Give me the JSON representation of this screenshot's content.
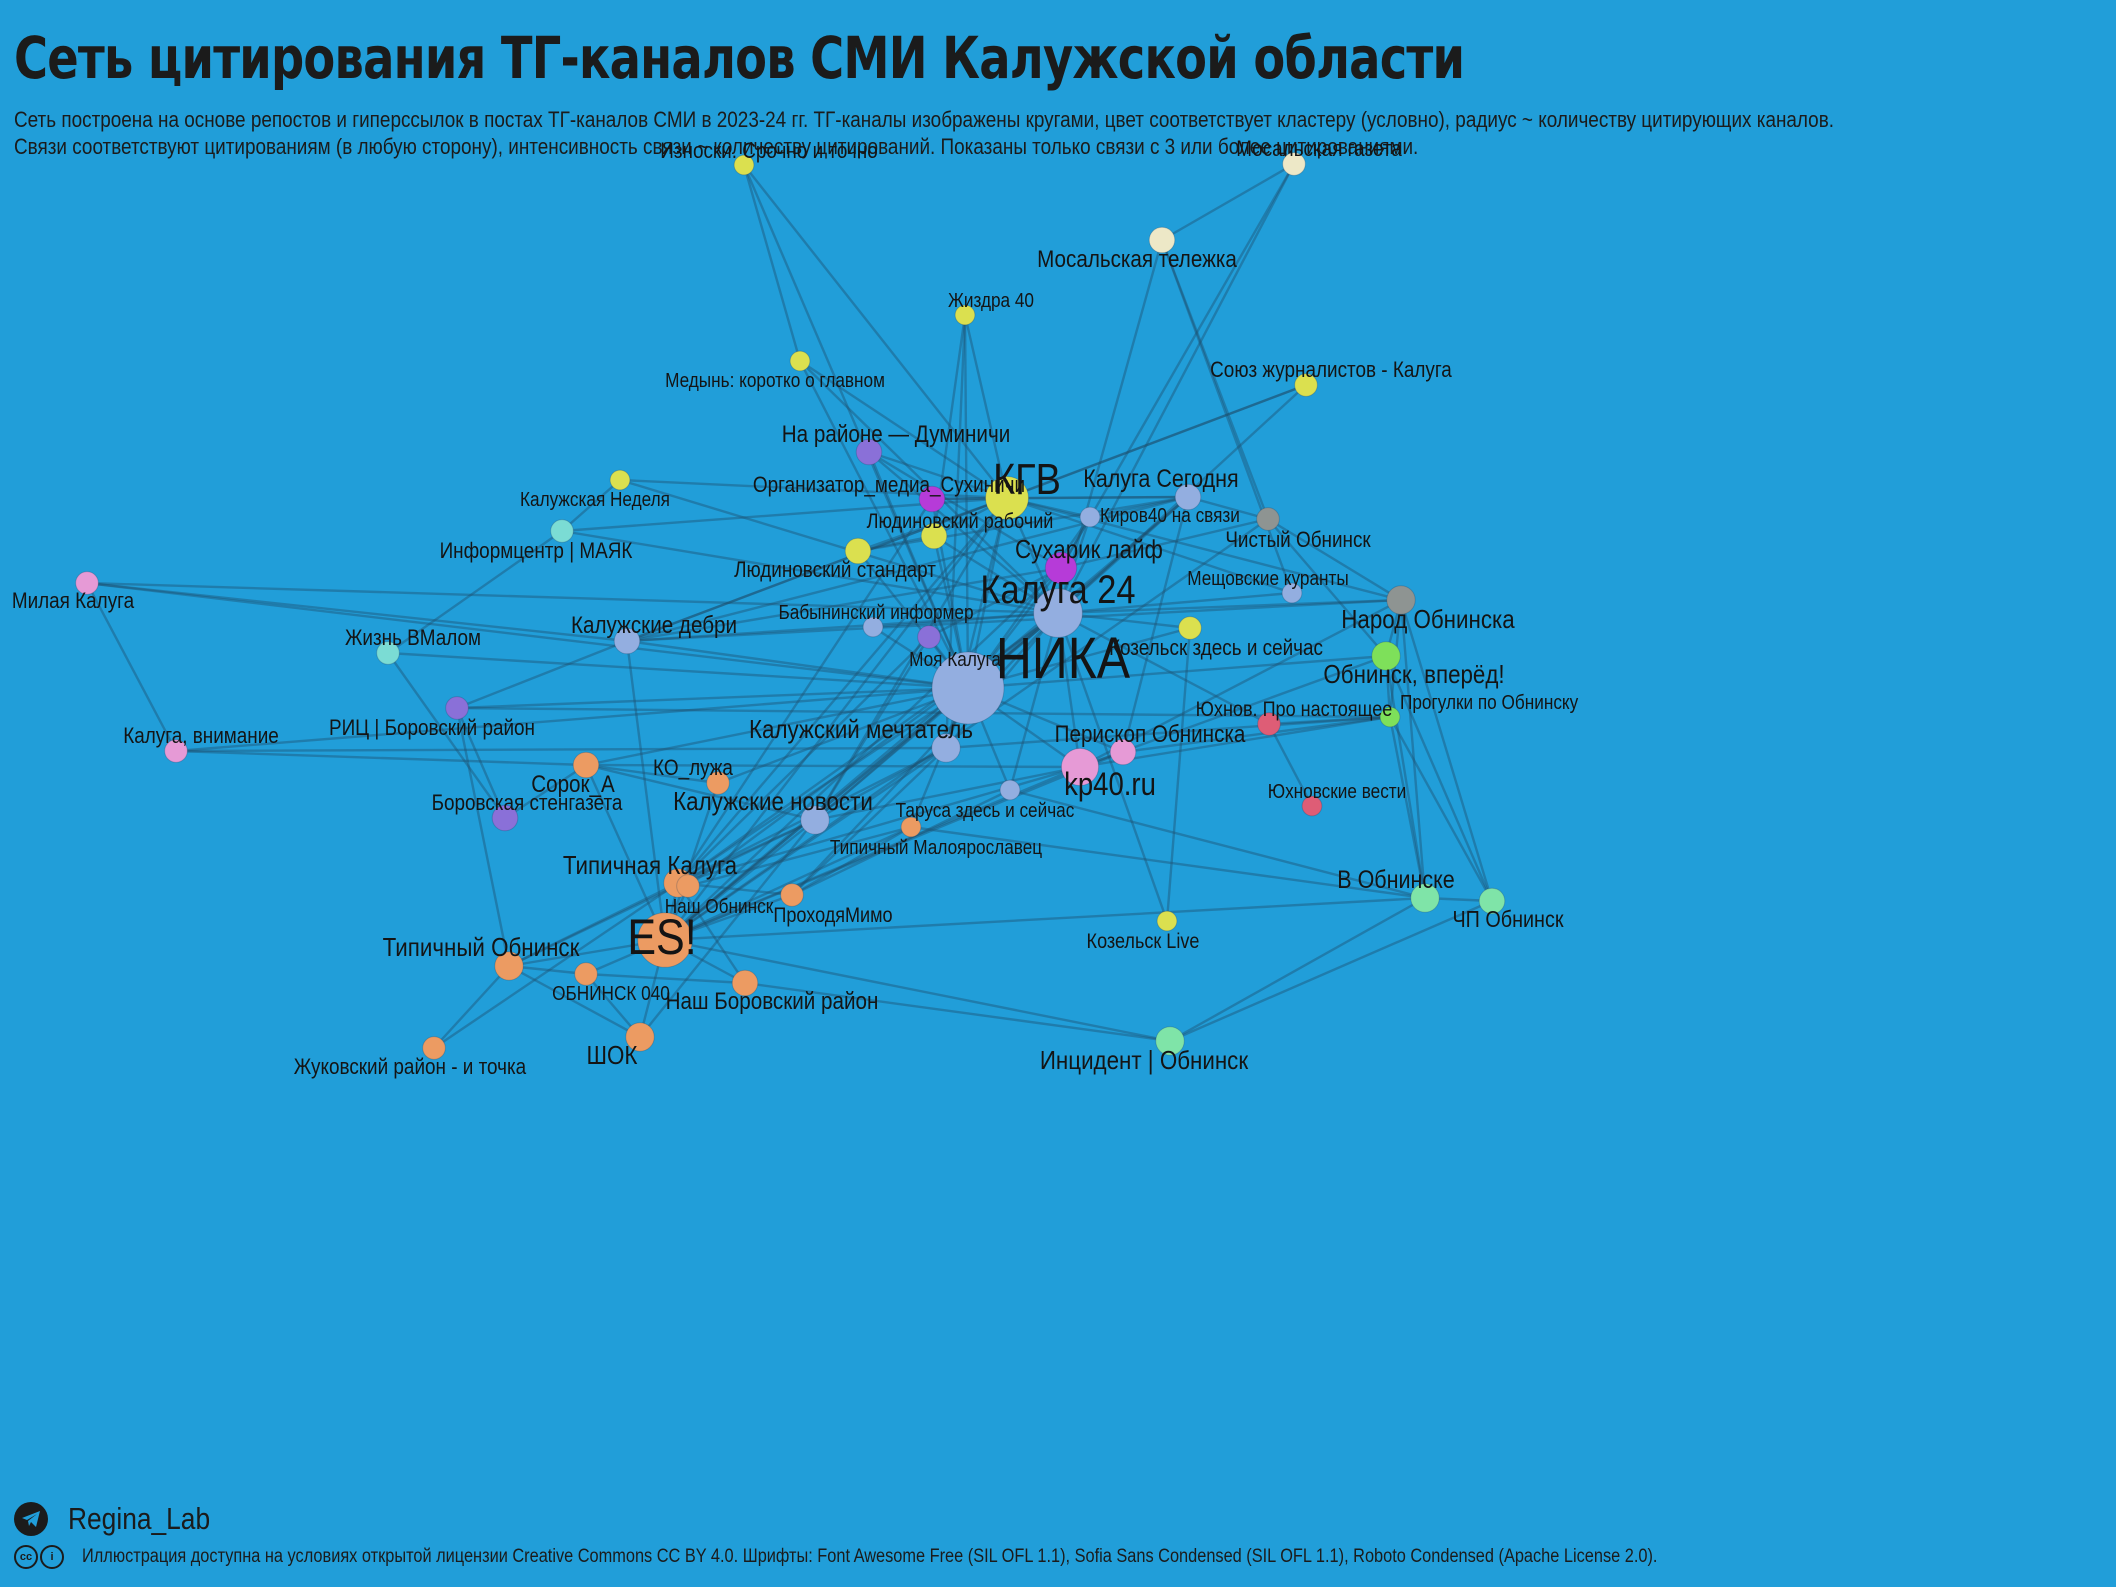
{
  "header": {
    "title": "Сеть цитирования ТГ-каналов СМИ Калужской области",
    "subtitle_line1": "Сеть построена на основе репостов и гиперссылок в постах ТГ-каналов СМИ в 2023-24 гг. ТГ-каналы изображены кругами, цвет соответствует кластеру (условно), радиус ~ количеству цитирующих каналов.",
    "subtitle_line2": "Связи соответствуют цитированиям (в любую сторону), интенсивность связи ~ количеству цитирований. Показаны только связи с 3 или более цитированиями."
  },
  "footer": {
    "author": "Regina_Lab",
    "license": "Иллюстрация доступна на условиях открытой лицензии Creative Commons CC BY 4.0. Шрифты: Font Awesome Free (SIL OFL 1.1), Sofia Sans Condensed (SIL OFL 1.1), Roboto Condensed (Apache License 2.0).",
    "telegram_icon": "telegram-icon",
    "cc_icon": "creative-commons-icon"
  },
  "colors": {
    "background": "#219ed9",
    "edge": "#1d4f6e",
    "label": "#141414",
    "clusters": {
      "kaluga": "#93aee0",
      "obninsk_typical": "#ec9b62",
      "yellow": "#dbe04f",
      "purple": "#8a70d8",
      "magenta": "#b63bd8",
      "green": "#7ee05a",
      "mint": "#7fe4a8",
      "gray": "#8e9492",
      "red": "#de5d76",
      "pink": "#e69ad6",
      "beige": "#ede8c7",
      "teal": "#7bdcd4"
    }
  },
  "network": {
    "nodes": [
      {
        "id": "nika",
        "label": "НИКА",
        "cluster": "kaluga",
        "weight": 10
      },
      {
        "id": "kaluga24",
        "label": "Калуга 24",
        "cluster": "kaluga",
        "weight": 6
      },
      {
        "id": "es",
        "label": "ES!",
        "cluster": "obninsk_typical",
        "weight": 7
      },
      {
        "id": "kgv",
        "label": "КГВ",
        "cluster": "yellow",
        "weight": 5
      },
      {
        "id": "kp40",
        "label": "kp40.ru",
        "cluster": "pink",
        "weight": 4
      },
      {
        "id": "iznoski",
        "label": "Износки. Срочно и точно",
        "cluster": "yellow",
        "weight": 1
      },
      {
        "id": "mos_gaz",
        "label": "Мосальская газета",
        "cluster": "beige",
        "weight": 1.5
      },
      {
        "id": "mos_tel",
        "label": "Мосальская тележка",
        "cluster": "beige",
        "weight": 2
      },
      {
        "id": "zhizdra",
        "label": "Жиздра 40",
        "cluster": "yellow",
        "weight": 1
      },
      {
        "id": "medyn",
        "label": "Медынь: коротко о главном",
        "cluster": "yellow",
        "weight": 1
      },
      {
        "id": "souz",
        "label": "Союз журналистов - Калуга",
        "cluster": "yellow",
        "weight": 1.5
      },
      {
        "id": "dumin",
        "label": "На районе — Думиничи",
        "cluster": "purple",
        "weight": 2
      },
      {
        "id": "sukhin",
        "label": "Организатор_медиа_Сухиничи",
        "cluster": "magenta",
        "weight": 2
      },
      {
        "id": "kal_ned",
        "label": "Калужская Неделя",
        "cluster": "yellow",
        "weight": 1
      },
      {
        "id": "kal_seg",
        "label": "Калуга Сегодня",
        "cluster": "kaluga",
        "weight": 2
      },
      {
        "id": "kirov",
        "label": "Киров40 на связи",
        "cluster": "kaluga",
        "weight": 1
      },
      {
        "id": "chist_obn",
        "label": "Чистый Обнинск",
        "cluster": "gray",
        "weight": 1.5
      },
      {
        "id": "lud_rab",
        "label": "Людиновский рабочий",
        "cluster": "yellow",
        "weight": 2
      },
      {
        "id": "infocenter",
        "label": "Информцентр | МАЯК",
        "cluster": "teal",
        "weight": 1.5
      },
      {
        "id": "sukharik",
        "label": "Сухарик лайф",
        "cluster": "magenta",
        "weight": 3
      },
      {
        "id": "lud_std",
        "label": "Людиновский стандарт",
        "cluster": "yellow",
        "weight": 2
      },
      {
        "id": "mil_kal",
        "label": "Милая Калуга",
        "cluster": "pink",
        "weight": 1.5
      },
      {
        "id": "meshch",
        "label": "Мещовские куранты",
        "cluster": "kaluga",
        "weight": 1
      },
      {
        "id": "babyn",
        "label": "Бабынинский информер",
        "cluster": "kaluga",
        "weight": 1
      },
      {
        "id": "narod_obn",
        "label": "Народ Обнинска",
        "cluster": "gray",
        "weight": 2.5
      },
      {
        "id": "kal_debri",
        "label": "Калужские дебри",
        "cluster": "kaluga",
        "weight": 2
      },
      {
        "id": "zhizn",
        "label": "Жизнь ВМалом",
        "cluster": "teal",
        "weight": 1.5
      },
      {
        "id": "moya_kal",
        "label": "Моя Калуга",
        "cluster": "purple",
        "weight": 1.5
      },
      {
        "id": "kozelsk_zs",
        "label": "Козельск здесь и сейчас",
        "cluster": "yellow",
        "weight": 1.5
      },
      {
        "id": "obn_vpered",
        "label": "Обнинск, вперёд!",
        "cluster": "green",
        "weight": 2.5
      },
      {
        "id": "progulki",
        "label": "Прогулки по Обнинску",
        "cluster": "green",
        "weight": 1
      },
      {
        "id": "yukh_pro",
        "label": "Юхнов. Про настоящее",
        "cluster": "red",
        "weight": 1.5
      },
      {
        "id": "ric",
        "label": "РИЦ | Боровский район",
        "cluster": "purple",
        "weight": 1.5
      },
      {
        "id": "kal_vnim",
        "label": "Калуга, внимание",
        "cluster": "pink",
        "weight": 1.5
      },
      {
        "id": "kal_mecht",
        "label": "Калужский мечтатель",
        "cluster": "kaluga",
        "weight": 2.5
      },
      {
        "id": "periskop",
        "label": "Перископ Обнинска",
        "cluster": "pink",
        "weight": 2
      },
      {
        "id": "sorok",
        "label": "Сорок_А",
        "cluster": "obninsk_typical",
        "weight": 2
      },
      {
        "id": "ko_luzha",
        "label": "КО_лужа",
        "cluster": "obninsk_typical",
        "weight": 1.5
      },
      {
        "id": "yukh_vesti",
        "label": "Юхновские вести",
        "cluster": "red",
        "weight": 1
      },
      {
        "id": "bor_sten",
        "label": "Боровская стенгазета",
        "cluster": "purple",
        "weight": 2
      },
      {
        "id": "kal_nov",
        "label": "Калужские новости",
        "cluster": "kaluga",
        "weight": 2.5
      },
      {
        "id": "tarusa",
        "label": "Таруса здесь и сейчас",
        "cluster": "kaluga",
        "weight": 1
      },
      {
        "id": "tip_malo",
        "label": "Типичный Малоярославец",
        "cluster": "obninsk_typical",
        "weight": 1
      },
      {
        "id": "tip_kal",
        "label": "Типичная Калуга",
        "cluster": "obninsk_typical",
        "weight": 2.5
      },
      {
        "id": "nash_obn",
        "label": "Наш Обнинск",
        "cluster": "obninsk_typical",
        "weight": 1.5
      },
      {
        "id": "prokh",
        "label": "ПроходяМимо",
        "cluster": "obninsk_typical",
        "weight": 1.5
      },
      {
        "id": "v_obn",
        "label": "В Обнинске",
        "cluster": "mint",
        "weight": 2.5
      },
      {
        "id": "chp_obn",
        "label": "ЧП Обнинск",
        "cluster": "mint",
        "weight": 2
      },
      {
        "id": "kozelsk_live",
        "label": "Козельск Live",
        "cluster": "yellow",
        "weight": 1
      },
      {
        "id": "tip_obn",
        "label": "Типичный Обнинск",
        "cluster": "obninsk_typical",
        "weight": 2.5
      },
      {
        "id": "obn040",
        "label": "ОБНИНСК 040",
        "cluster": "obninsk_typical",
        "weight": 1.5
      },
      {
        "id": "nash_bor",
        "label": "Наш Боровский район",
        "cluster": "obninsk_typical",
        "weight": 2
      },
      {
        "id": "zhuk",
        "label": "Жуковский район - и точка",
        "cluster": "obninsk_typical",
        "weight": 1.5
      },
      {
        "id": "shok",
        "label": "ШОК",
        "cluster": "obninsk_typical",
        "weight": 2.5
      },
      {
        "id": "incident",
        "label": "Инцидент | Обнинск",
        "cluster": "mint",
        "weight": 2.5
      }
    ],
    "edges": [
      [
        "nika",
        "kaluga24"
      ],
      [
        "nika",
        "es"
      ],
      [
        "nika",
        "kgv"
      ],
      [
        "nika",
        "kp40"
      ],
      [
        "nika",
        "kal_mecht"
      ],
      [
        "nika",
        "kal_nov"
      ],
      [
        "nika",
        "sukharik"
      ],
      [
        "nika",
        "kal_debri"
      ],
      [
        "nika",
        "moya_kal"
      ],
      [
        "nika",
        "babyn"
      ],
      [
        "nika",
        "lud_std"
      ],
      [
        "nika",
        "lud_rab"
      ],
      [
        "nika",
        "sukhin"
      ],
      [
        "nika",
        "dumin"
      ],
      [
        "nika",
        "zhizdra"
      ],
      [
        "nika",
        "iznoski"
      ],
      [
        "nika",
        "tip_kal"
      ],
      [
        "nika",
        "tarusa"
      ],
      [
        "nika",
        "periskop"
      ],
      [
        "nika",
        "ric"
      ],
      [
        "nika",
        "zhizn"
      ],
      [
        "nika",
        "mil_kal"
      ],
      [
        "nika",
        "kal_seg"
      ],
      [
        "nika",
        "kirov"
      ],
      [
        "nika",
        "tip_malo"
      ],
      [
        "nika",
        "obn_vpered"
      ],
      [
        "nika",
        "kozelsk_zs"
      ],
      [
        "nika",
        "medyn"
      ],
      [
        "nika",
        "sorok"
      ],
      [
        "nika",
        "ko_luzha"
      ],
      [
        "kaluga24",
        "kgv"
      ],
      [
        "kaluga24",
        "es"
      ],
      [
        "kaluga24",
        "sukharik"
      ],
      [
        "kaluga24",
        "kal_seg"
      ],
      [
        "kaluga24",
        "kal_debri"
      ],
      [
        "kaluga24",
        "tip_kal"
      ],
      [
        "kaluga24",
        "kal_mecht"
      ],
      [
        "kaluga24",
        "kal_nov"
      ],
      [
        "kaluga24",
        "kirov"
      ],
      [
        "kaluga24",
        "mos_gaz"
      ],
      [
        "kaluga24",
        "lud_rab"
      ],
      [
        "kaluga24",
        "meshch"
      ],
      [
        "kaluga24",
        "narod_obn"
      ],
      [
        "kaluga24",
        "kozelsk_zs"
      ],
      [
        "kaluga24",
        "tarusa"
      ],
      [
        "kaluga24",
        "souz"
      ],
      [
        "kaluga24",
        "kp40"
      ],
      [
        "kaluga24",
        "infocenter"
      ],
      [
        "kaluga24",
        "nash_obn"
      ],
      [
        "kaluga24",
        "prokh"
      ],
      [
        "kaluga24",
        "dumin"
      ],
      [
        "es",
        "tip_kal"
      ],
      [
        "es",
        "tip_obn"
      ],
      [
        "es",
        "obn040"
      ],
      [
        "es",
        "nash_bor"
      ],
      [
        "es",
        "shok"
      ],
      [
        "es",
        "nash_obn"
      ],
      [
        "es",
        "kal_nov"
      ],
      [
        "es",
        "prokh"
      ],
      [
        "es",
        "ko_luzha"
      ],
      [
        "es",
        "sorok"
      ],
      [
        "es",
        "kal_mecht"
      ],
      [
        "es",
        "kgv"
      ],
      [
        "es",
        "sukharik"
      ],
      [
        "es",
        "kp40"
      ],
      [
        "es",
        "periskop"
      ],
      [
        "es",
        "v_obn"
      ],
      [
        "es",
        "chist_obn"
      ],
      [
        "es",
        "kal_debri"
      ],
      [
        "es",
        "tip_malo"
      ],
      [
        "es",
        "kal_seg"
      ],
      [
        "kgv",
        "zhizdra"
      ],
      [
        "kgv",
        "iznoski"
      ],
      [
        "kgv",
        "lud_rab"
      ],
      [
        "kgv",
        "sukhin"
      ],
      [
        "kgv",
        "kal_seg"
      ],
      [
        "kgv",
        "kirov"
      ],
      [
        "kgv",
        "dumin"
      ],
      [
        "kgv",
        "tip_kal"
      ],
      [
        "kgv",
        "kal_nov"
      ],
      [
        "kgv",
        "kal_debri"
      ],
      [
        "kgv",
        "lud_std"
      ],
      [
        "kgv",
        "kal_ned"
      ],
      [
        "kgv",
        "narod_obn"
      ],
      [
        "kgv",
        "kal_mecht"
      ],
      [
        "kp40",
        "periskop"
      ],
      [
        "kp40",
        "obn_vpered"
      ],
      [
        "kp40",
        "progulki"
      ],
      [
        "kp40",
        "tip_kal"
      ],
      [
        "kp40",
        "kal_nov"
      ],
      [
        "kp40",
        "sorok"
      ],
      [
        "mos_gaz",
        "mos_tel"
      ],
      [
        "mos_gaz",
        "sukharik"
      ],
      [
        "mos_tel",
        "meshch"
      ],
      [
        "mos_tel",
        "kaluga24"
      ],
      [
        "zhizdra",
        "lud_rab"
      ],
      [
        "zhizdra",
        "kal_mecht"
      ],
      [
        "medyn",
        "kgv"
      ],
      [
        "medyn",
        "kaluga24"
      ],
      [
        "medyn",
        "iznoski"
      ],
      [
        "souz",
        "kal_debri"
      ],
      [
        "souz",
        "kgv"
      ],
      [
        "dumin",
        "sukharik"
      ],
      [
        "sukhin",
        "kal_seg"
      ],
      [
        "sukhin",
        "tip_kal"
      ],
      [
        "kal_ned",
        "kaluga24"
      ],
      [
        "infocenter",
        "kgv"
      ],
      [
        "infocenter",
        "zhizn"
      ],
      [
        "infocenter",
        "kal_ned"
      ],
      [
        "mil_kal",
        "kal_vnim"
      ],
      [
        "mil_kal",
        "kaluga24"
      ],
      [
        "kal_vnim",
        "nika"
      ],
      [
        "kal_vnim",
        "kal_mecht"
      ],
      [
        "narod_obn",
        "obn_vpered"
      ],
      [
        "narod_obn",
        "v_obn"
      ],
      [
        "narod_obn",
        "progulki"
      ],
      [
        "narod_obn",
        "chp_obn"
      ],
      [
        "narod_obn",
        "chist_obn"
      ],
      [
        "narod_obn",
        "kp40"
      ],
      [
        "narod_obn",
        "kal_debri"
      ],
      [
        "obn_vpered",
        "progulki"
      ],
      [
        "obn_vpered",
        "v_obn"
      ],
      [
        "obn_vpered",
        "chp_obn"
      ],
      [
        "obn_vpered",
        "chist_obn"
      ],
      [
        "progulki",
        "v_obn"
      ],
      [
        "progulki",
        "chp_obn"
      ],
      [
        "progulki",
        "periskop"
      ],
      [
        "progulki",
        "ric"
      ],
      [
        "progulki",
        "kal_mecht"
      ],
      [
        "chist_obn",
        "kal_seg"
      ],
      [
        "chist_obn",
        "mos_tel"
      ],
      [
        "chist_obn",
        "sukharik"
      ],
      [
        "yukh_pro",
        "yukh_vesti"
      ],
      [
        "yukh_pro",
        "kaluga24"
      ],
      [
        "yukh_pro",
        "progulki"
      ],
      [
        "v_obn",
        "chp_obn"
      ],
      [
        "v_obn",
        "incident"
      ],
      [
        "v_obn",
        "tarusa"
      ],
      [
        "v_obn",
        "tip_malo"
      ],
      [
        "chp_obn",
        "incident"
      ],
      [
        "incident",
        "es"
      ],
      [
        "incident",
        "nash_bor"
      ],
      [
        "kozelsk_live",
        "kozelsk_zs"
      ],
      [
        "kozelsk_live",
        "kaluga24"
      ],
      [
        "tip_obn",
        "shok"
      ],
      [
        "tip_obn",
        "zhuk"
      ],
      [
        "tip_obn",
        "obn040"
      ],
      [
        "tip_obn",
        "kal_nov"
      ],
      [
        "tip_obn",
        "tip_kal"
      ],
      [
        "obn040",
        "shok"
      ],
      [
        "obn040",
        "nash_bor"
      ],
      [
        "nash_bor",
        "tip_kal"
      ],
      [
        "shok",
        "kal_nov"
      ],
      [
        "zhuk",
        "tip_kal"
      ],
      [
        "tip_kal",
        "kal_nov"
      ],
      [
        "tip_kal",
        "kal_mecht"
      ],
      [
        "tip_kal",
        "nash_obn"
      ],
      [
        "tip_kal",
        "prokh"
      ],
      [
        "tip_kal",
        "moya_kal"
      ],
      [
        "kal_nov",
        "kal_mecht"
      ],
      [
        "kal_nov",
        "moya_kal"
      ],
      [
        "kal_nov",
        "sorok"
      ],
      [
        "sorok",
        "kal_vnim"
      ],
      [
        "sorok",
        "bor_sten"
      ],
      [
        "sorok",
        "ko_luzha"
      ],
      [
        "bor_sten",
        "ric"
      ],
      [
        "bor_sten",
        "zhizn"
      ],
      [
        "ric",
        "kal_debri"
      ],
      [
        "ric",
        "tip_obn"
      ],
      [
        "kal_debri",
        "mil_kal"
      ],
      [
        "kal_debri",
        "sukharik"
      ],
      [
        "kal_debri",
        "kal_seg"
      ],
      [
        "babyn",
        "kaluga24"
      ],
      [
        "moya_kal",
        "sukharik"
      ],
      [
        "lud_std",
        "lud_rab"
      ],
      [
        "lud_std",
        "kal_seg"
      ],
      [
        "kirov",
        "kal_seg"
      ],
      [
        "kirov",
        "sukharik"
      ],
      [
        "tarusa",
        "prokh"
      ],
      [
        "tip_malo",
        "prokh"
      ],
      [
        "tip_malo",
        "nash_obn"
      ],
      [
        "meshch",
        "kgv"
      ],
      [
        "kal_seg",
        "periskop"
      ],
      [
        "kal_mecht",
        "prokh"
      ]
    ]
  }
}
